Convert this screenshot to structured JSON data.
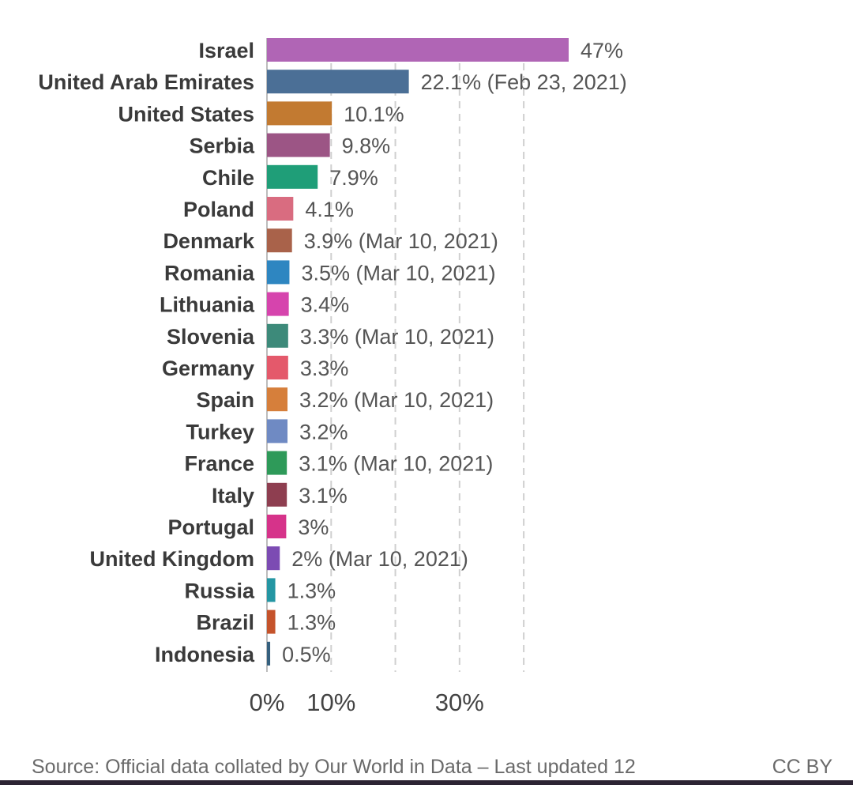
{
  "chart_data": {
    "type": "bar",
    "orientation": "horizontal",
    "categories": [
      "Israel",
      "United Arab Emirates",
      "United States",
      "Serbia",
      "Chile",
      "Poland",
      "Denmark",
      "Romania",
      "Lithuania",
      "Slovenia",
      "Germany",
      "Spain",
      "Turkey",
      "France",
      "Italy",
      "Portugal",
      "United Kingdom",
      "Russia",
      "Brazil",
      "Indonesia"
    ],
    "values": [
      47,
      22.1,
      10.1,
      9.8,
      7.9,
      4.1,
      3.9,
      3.5,
      3.4,
      3.3,
      3.3,
      3.2,
      3.2,
      3.1,
      3.1,
      3,
      2,
      1.3,
      1.3,
      0.5
    ],
    "value_labels": [
      "47%",
      "22.1% (Feb 23, 2021)",
      "10.1%",
      "9.8%",
      "7.9%",
      "4.1%",
      "3.9% (Mar 10, 2021)",
      "3.5% (Mar 10, 2021)",
      "3.4%",
      "3.3% (Mar 10, 2021)",
      "3.3%",
      "3.2% (Mar 10, 2021)",
      "3.2%",
      "3.1% (Mar 10, 2021)",
      "3.1%",
      "3%",
      "2% (Mar 10, 2021)",
      "1.3%",
      "1.3%",
      "0.5%"
    ],
    "colors": [
      "#b065b5",
      "#4b6f96",
      "#c27a31",
      "#9c5585",
      "#1f9e78",
      "#d96c80",
      "#a9624a",
      "#2e86c1",
      "#d644ad",
      "#3d8a7a",
      "#e4596b",
      "#d67f3b",
      "#6f8ac3",
      "#2e9a59",
      "#8e3e50",
      "#d6338a",
      "#7c4bb3",
      "#2496a3",
      "#c5532b",
      "#35607e"
    ],
    "x_ticks": [
      "0%",
      "10%",
      "30%"
    ],
    "gridlines": [
      10,
      20,
      30,
      40
    ],
    "xlim": [
      0,
      47
    ],
    "grid": true,
    "title": "",
    "xlabel": "",
    "ylabel": ""
  },
  "footer": {
    "source": "Source: Official data collated by Our World in Data – Last updated 12",
    "license": "CC BY"
  }
}
